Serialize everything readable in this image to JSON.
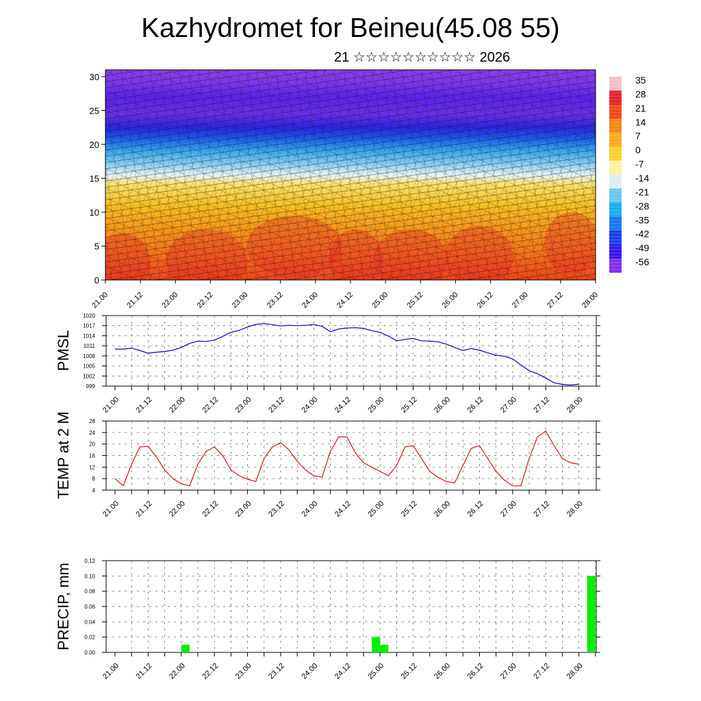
{
  "header": {
    "title": "Kazhydromet for Beineu(45.08 55)",
    "subtitle": "21 ☆☆☆☆☆☆☆☆☆☆ 2026"
  },
  "chart_data": [
    {
      "id": "cross-section",
      "type": "heatmap",
      "title": "",
      "ylim": [
        0,
        31
      ],
      "yticks": [
        "0",
        "5",
        "10",
        "15",
        "20",
        "25",
        "30"
      ],
      "ytick_values": [
        0,
        5,
        10,
        15,
        20,
        25,
        30
      ],
      "xticks": [
        "21.00",
        "21.12",
        "22.00",
        "22.12",
        "23.00",
        "23.12",
        "24.00",
        "24.12",
        "25.00",
        "25.12",
        "26.00",
        "26.12",
        "27.00",
        "27.12",
        "28.00"
      ],
      "colorbar": {
        "labels": [
          "35",
          "28",
          "21",
          "14",
          "7",
          "0",
          "-7",
          "-14",
          "-21",
          "-28",
          "-35",
          "-42",
          "-49",
          "-56"
        ],
        "colors": [
          "#f2c0c2",
          "#e2252a",
          "#f04a1e",
          "#f4831a",
          "#f7ac1c",
          "#fad12c",
          "#fdf0a0",
          "#d9eef6",
          "#66c6ee",
          "#1eaaee",
          "#1878ee",
          "#1a3ee8",
          "#3018f0",
          "#8030e8"
        ]
      },
      "color_bands": [
        {
          "level": 0,
          "color": "#f0421c"
        },
        {
          "level": 4,
          "color": "#f6741a"
        },
        {
          "level": 8,
          "color": "#f79c1c"
        },
        {
          "level": 11,
          "color": "#f9bf22"
        },
        {
          "level": 14,
          "color": "#fbe064"
        },
        {
          "level": 15.5,
          "color": "#e6f3f6"
        },
        {
          "level": 17,
          "color": "#8cd2f0"
        },
        {
          "level": 19,
          "color": "#38a8ee"
        },
        {
          "level": 21,
          "color": "#1c56ea"
        },
        {
          "level": 22.5,
          "color": "#2a26e4"
        },
        {
          "level": 24.5,
          "color": "#6a2ee8"
        },
        {
          "level": 27,
          "color": "#5a24ec"
        },
        {
          "level": 29,
          "color": "#7c36ea"
        },
        {
          "level": 31,
          "color": "#8a40ec"
        }
      ]
    },
    {
      "id": "pmsl",
      "type": "line",
      "ylabel": "PMSL",
      "ylim": [
        999,
        1020
      ],
      "yticks": [
        "999",
        "1002",
        "1005",
        "1008",
        "1011",
        "1014",
        "1017",
        "1020"
      ],
      "ytick_values": [
        999,
        1002,
        1005,
        1008,
        1011,
        1014,
        1017,
        1020
      ],
      "xticks": [
        "21.00",
        "21.12",
        "22.00",
        "22.12",
        "23.00",
        "23.12",
        "24.00",
        "24.12",
        "25.00",
        "25.12",
        "26.00",
        "26.12",
        "27.00",
        "27.12",
        "28.00"
      ],
      "line_color": "#0000cc",
      "series": [
        {
          "name": "PMSL",
          "x": [
            0,
            0.5,
            1,
            1.5,
            2,
            2.5,
            3,
            3.5,
            4,
            4.5,
            5,
            5.5,
            6,
            6.5,
            7,
            7.5,
            8,
            8.5,
            9,
            9.5,
            10,
            10.5,
            11,
            11.5,
            12,
            12.5,
            13,
            13.5,
            14,
            14.5,
            15,
            15.5,
            16,
            16.5,
            17,
            17.5,
            18,
            18.5,
            19,
            19.5,
            20,
            20.5,
            21,
            21.5,
            22,
            22.5,
            23,
            23.5,
            24,
            24.5,
            25,
            25.5,
            26,
            26.5,
            27,
            27.5,
            28
          ],
          "values": [
            1010,
            1010,
            1010.3,
            1009.6,
            1008.8,
            1009.1,
            1009.3,
            1009.7,
            1010.5,
            1011.7,
            1012.4,
            1012.3,
            1012.7,
            1013.8,
            1015,
            1015.6,
            1016.6,
            1017.4,
            1017.6,
            1017.3,
            1016.9,
            1017.1,
            1017,
            1017.1,
            1017.3,
            1016.8,
            1015.2,
            1016,
            1016.3,
            1016.4,
            1016.2,
            1015.5,
            1015,
            1013.9,
            1012.5,
            1012.9,
            1013.2,
            1012.5,
            1012.4,
            1012.2,
            1011.5,
            1010.5,
            1009.6,
            1010.2,
            1009.7,
            1008.9,
            1008.2,
            1007.9,
            1007.1,
            1005.3,
            1003.6,
            1002.7,
            1001.4,
            1000,
            999.5,
            999.3,
            999.6
          ]
        }
      ]
    },
    {
      "id": "temp2m",
      "type": "line",
      "ylabel": "TEMP at 2 M",
      "ylim": [
        4,
        28
      ],
      "yticks": [
        "4",
        "8",
        "12",
        "16",
        "20",
        "24",
        "28"
      ],
      "ytick_values": [
        4,
        8,
        12,
        16,
        20,
        24,
        28
      ],
      "xticks": [
        "21.00",
        "21.12",
        "22.00",
        "22.12",
        "23.00",
        "23.12",
        "24.00",
        "24.12",
        "25.00",
        "25.12",
        "26.00",
        "26.12",
        "27.00",
        "27.12",
        "28.00"
      ],
      "line_color": "#dd1111",
      "series": [
        {
          "name": "TEMP",
          "x": [
            0,
            0.5,
            1,
            1.5,
            2,
            2.5,
            3,
            3.5,
            4,
            4.5,
            5,
            5.5,
            6,
            6.5,
            7,
            7.5,
            8,
            8.5,
            9,
            9.5,
            10,
            10.5,
            11,
            11.5,
            12,
            12.5,
            13,
            13.5,
            14,
            14.5,
            15,
            15.5,
            16,
            16.5,
            17,
            17.5,
            18,
            18.5,
            19,
            19.5,
            20,
            20.5,
            21,
            21.5,
            22,
            22.5,
            23,
            23.5,
            24,
            24.5,
            25,
            25.5,
            26,
            26.5,
            27,
            27.5,
            28
          ],
          "values": [
            8,
            5.5,
            13,
            19,
            19.2,
            15.5,
            11,
            8,
            6.2,
            5.5,
            13,
            17.5,
            19,
            16,
            11,
            9,
            7.8,
            7,
            15,
            19,
            20.5,
            18,
            14,
            11,
            9,
            8.5,
            17.5,
            22.5,
            22.5,
            17,
            13.5,
            12,
            10.5,
            9,
            12.5,
            19,
            19.5,
            15,
            10.5,
            8.5,
            7,
            6.5,
            12.5,
            18.5,
            19.5,
            15,
            10.5,
            7.5,
            5.5,
            5.5,
            15,
            22.5,
            24.5,
            19.5,
            15,
            13.5,
            13
          ]
        }
      ]
    },
    {
      "id": "precip",
      "type": "bar",
      "ylabel": "PRECIP, mm",
      "ylim": [
        0,
        0.12
      ],
      "yticks": [
        "0.00",
        "0.02",
        "0.04",
        "0.06",
        "0.08",
        "0.10",
        "0.12"
      ],
      "ytick_values": [
        0,
        0.02,
        0.04,
        0.06,
        0.08,
        0.1,
        0.12
      ],
      "xticks": [
        "21.00",
        "21.12",
        "22.00",
        "22.12",
        "23.00",
        "23.12",
        "24.00",
        "24.12",
        "25.00",
        "25.12",
        "26.00",
        "26.12",
        "27.00",
        "27.12",
        "28.00"
      ],
      "bar_color": "#00ee00",
      "bars": [
        {
          "start": 4.0,
          "end": 4.5,
          "value": 0.01
        },
        {
          "start": 15.5,
          "end": 16.0,
          "value": 0.02
        },
        {
          "start": 16.0,
          "end": 16.5,
          "value": 0.01
        },
        {
          "start": 28.5,
          "end": 29.0,
          "value": 0.1
        }
      ]
    }
  ]
}
